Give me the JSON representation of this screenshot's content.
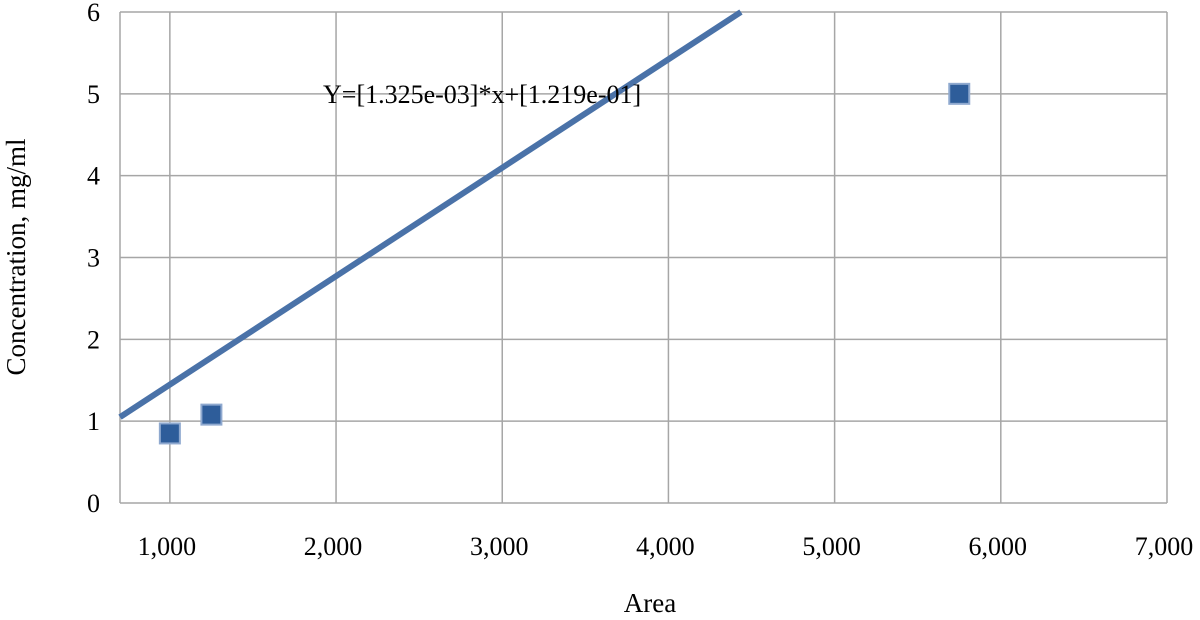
{
  "chart_data": {
    "type": "scatter",
    "title": "",
    "xlabel": "Area",
    "ylabel": "Concentration, mg/ml",
    "xlim": [
      700,
      7000
    ],
    "ylim": [
      0,
      6
    ],
    "x_ticks": [
      1000,
      2000,
      3000,
      4000,
      5000,
      6000,
      7000
    ],
    "x_tick_labels": [
      "1,000",
      "2,000",
      "3,000",
      "4,000",
      "5,000",
      "6,000",
      "7,000"
    ],
    "y_ticks": [
      0,
      1,
      2,
      3,
      4,
      5,
      6
    ],
    "y_tick_labels": [
      "0",
      "1",
      "2",
      "3",
      "4",
      "5",
      "6"
    ],
    "grid": true,
    "legend": "none",
    "series": [
      {
        "points": [
          {
            "x": 1000,
            "y": 0.85
          },
          {
            "x": 1250,
            "y": 1.08
          },
          {
            "x": 5750,
            "y": 5.0
          }
        ],
        "marker": "square",
        "color": "#2e5d9a"
      }
    ],
    "fit_line": {
      "slope": 0.001325,
      "intercept": 0.1219,
      "color": "#4a72a8"
    },
    "annotation": "Y=[1.325e-03]*x+[1.219e-01]"
  }
}
